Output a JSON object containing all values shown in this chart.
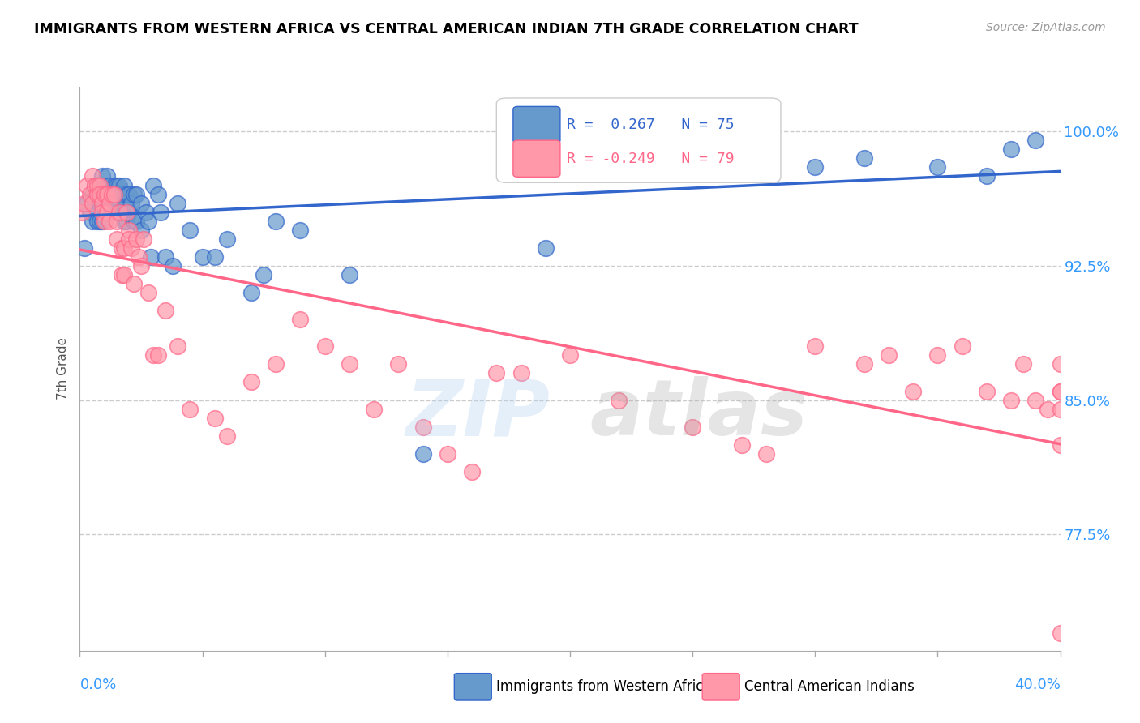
{
  "title": "IMMIGRANTS FROM WESTERN AFRICA VS CENTRAL AMERICAN INDIAN 7TH GRADE CORRELATION CHART",
  "source": "Source: ZipAtlas.com",
  "ylabel": "7th Grade",
  "yticks": [
    77.5,
    85.0,
    92.5,
    100.0
  ],
  "ytick_labels": [
    "77.5%",
    "85.0%",
    "92.5%",
    "100.0%"
  ],
  "xlim": [
    0.0,
    40.0
  ],
  "ylim": [
    71.0,
    102.5
  ],
  "legend_blue_r": "0.267",
  "legend_blue_n": "75",
  "legend_pink_r": "-0.249",
  "legend_pink_n": "79",
  "blue_color": "#6699CC",
  "pink_color": "#FF99AA",
  "blue_line_color": "#3366CC",
  "pink_line_color": "#FF6688",
  "blue_dots_x": [
    0.2,
    0.3,
    0.4,
    0.5,
    0.5,
    0.6,
    0.7,
    0.7,
    0.8,
    0.8,
    0.8,
    0.9,
    0.9,
    0.9,
    1.0,
    1.0,
    1.1,
    1.1,
    1.2,
    1.2,
    1.3,
    1.3,
    1.4,
    1.4,
    1.5,
    1.5,
    1.5,
    1.6,
    1.6,
    1.6,
    1.7,
    1.7,
    1.8,
    1.8,
    1.8,
    1.9,
    1.9,
    2.0,
    2.0,
    2.1,
    2.2,
    2.2,
    2.3,
    2.3,
    2.5,
    2.5,
    2.7,
    2.8,
    2.9,
    3.0,
    3.2,
    3.3,
    3.5,
    3.8,
    4.0,
    4.5,
    5.0,
    5.5,
    6.0,
    7.0,
    7.5,
    8.0,
    9.0,
    11.0,
    14.0,
    19.0,
    21.0,
    25.0,
    27.0,
    30.0,
    32.0,
    35.0,
    37.0,
    38.0,
    39.0
  ],
  "blue_dots_y": [
    93.5,
    96.0,
    95.5,
    96.5,
    95.0,
    97.0,
    96.5,
    95.0,
    97.0,
    96.0,
    95.0,
    97.5,
    96.0,
    95.0,
    97.0,
    96.0,
    97.5,
    96.5,
    97.0,
    96.5,
    96.5,
    95.5,
    97.0,
    96.0,
    97.0,
    96.5,
    95.5,
    97.0,
    96.5,
    95.5,
    96.5,
    95.5,
    97.0,
    96.0,
    95.0,
    96.5,
    95.0,
    96.5,
    95.5,
    96.0,
    96.5,
    95.0,
    96.5,
    95.0,
    96.0,
    94.5,
    95.5,
    95.0,
    93.0,
    97.0,
    96.5,
    95.5,
    93.0,
    92.5,
    96.0,
    94.5,
    93.0,
    93.0,
    94.0,
    91.0,
    92.0,
    95.0,
    94.5,
    92.0,
    82.0,
    93.5,
    99.5,
    99.5,
    99.5,
    98.0,
    98.5,
    98.0,
    97.5,
    99.0,
    99.5
  ],
  "pink_dots_x": [
    0.1,
    0.2,
    0.3,
    0.4,
    0.5,
    0.5,
    0.6,
    0.7,
    0.7,
    0.8,
    0.8,
    0.9,
    0.9,
    1.0,
    1.0,
    1.1,
    1.1,
    1.2,
    1.2,
    1.3,
    1.4,
    1.5,
    1.5,
    1.6,
    1.7,
    1.7,
    1.8,
    1.8,
    1.9,
    2.0,
    2.0,
    2.1,
    2.2,
    2.3,
    2.4,
    2.5,
    2.6,
    2.8,
    3.0,
    3.2,
    3.5,
    4.0,
    4.5,
    5.5,
    6.0,
    7.0,
    8.0,
    9.0,
    10.0,
    11.0,
    12.0,
    13.0,
    14.0,
    15.0,
    16.0,
    17.0,
    18.0,
    20.0,
    22.0,
    25.0,
    27.0,
    28.0,
    30.0,
    32.0,
    33.0,
    34.0,
    35.0,
    36.0,
    37.0,
    38.0,
    38.5,
    39.0,
    39.5,
    40.0,
    40.0,
    40.0,
    40.0,
    40.0,
    40.0
  ],
  "pink_dots_y": [
    95.5,
    96.0,
    97.0,
    96.5,
    96.0,
    97.5,
    97.0,
    97.0,
    96.5,
    97.0,
    96.5,
    96.0,
    95.5,
    96.5,
    95.0,
    96.5,
    95.5,
    96.0,
    95.0,
    96.5,
    96.5,
    95.0,
    94.0,
    95.5,
    93.5,
    92.0,
    93.5,
    92.0,
    95.5,
    94.5,
    94.0,
    93.5,
    91.5,
    94.0,
    93.0,
    92.5,
    94.0,
    91.0,
    87.5,
    87.5,
    90.0,
    88.0,
    84.5,
    84.0,
    83.0,
    86.0,
    87.0,
    89.5,
    88.0,
    87.0,
    84.5,
    87.0,
    83.5,
    82.0,
    81.0,
    86.5,
    86.5,
    87.5,
    85.0,
    83.5,
    82.5,
    82.0,
    88.0,
    87.0,
    87.5,
    85.5,
    87.5,
    88.0,
    85.5,
    85.0,
    87.0,
    85.0,
    84.5,
    85.5,
    87.0,
    72.0,
    82.5,
    84.5,
    85.5
  ]
}
